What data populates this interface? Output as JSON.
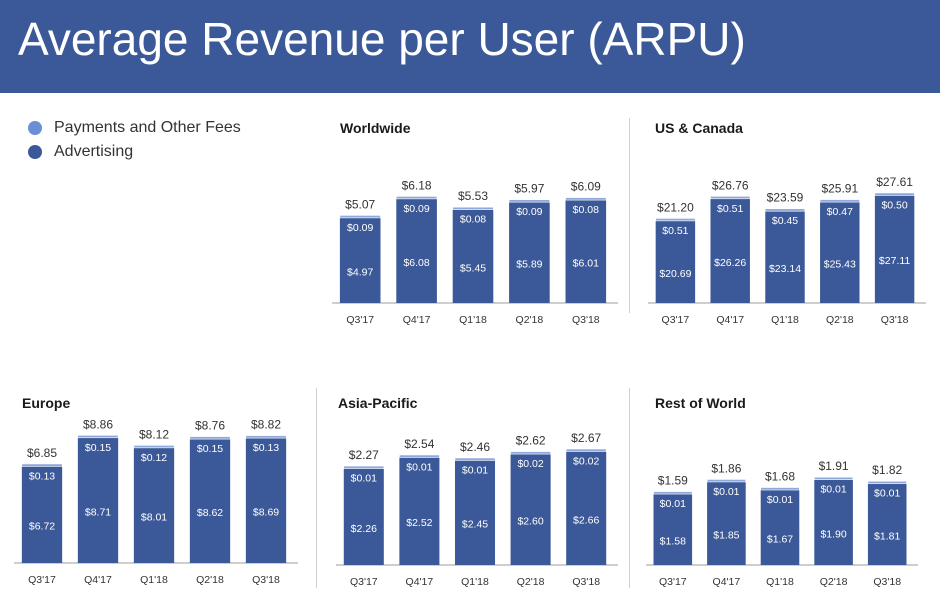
{
  "header": {
    "title": "Average Revenue per User (ARPU)"
  },
  "legend": {
    "items": [
      {
        "label": "Payments and Other Fees",
        "color": "#6a8fd6"
      },
      {
        "label": "Advertising",
        "color": "#3b5998"
      }
    ]
  },
  "colors": {
    "advertising": "#3b5998",
    "payments": "#8fa9dc",
    "header": "#3b5998",
    "axis": "#9e9e9e"
  },
  "chart_data": [
    {
      "type": "bar",
      "stacked": true,
      "title": "Worldwide",
      "categories": [
        "Q3'17",
        "Q4'17",
        "Q1'18",
        "Q2'18",
        "Q3'18"
      ],
      "series": [
        {
          "name": "Advertising",
          "values": [
            4.97,
            6.08,
            5.45,
            5.89,
            6.01
          ],
          "labels": [
            "$4.97",
            "$6.08",
            "$5.45",
            "$5.89",
            "$6.01"
          ]
        },
        {
          "name": "Payments and Other Fees",
          "values": [
            0.09,
            0.09,
            0.08,
            0.09,
            0.08
          ],
          "labels": [
            "$0.09",
            "$0.09",
            "$0.08",
            "$0.09",
            "$0.08"
          ]
        }
      ],
      "totals": [
        "$5.07",
        "$6.18",
        "$5.53",
        "$5.97",
        "$6.09"
      ],
      "total_values": [
        5.07,
        6.18,
        5.53,
        5.97,
        6.09
      ],
      "ylim": [
        0,
        7.3
      ]
    },
    {
      "type": "bar",
      "stacked": true,
      "title": "US & Canada",
      "categories": [
        "Q3'17",
        "Q4'17",
        "Q1'18",
        "Q2'18",
        "Q3'18"
      ],
      "series": [
        {
          "name": "Advertising",
          "values": [
            20.69,
            26.26,
            23.14,
            25.43,
            27.11
          ],
          "labels": [
            "$20.69",
            "$26.26",
            "$23.14",
            "$25.43",
            "$27.11"
          ]
        },
        {
          "name": "Payments and Other Fees",
          "values": [
            0.51,
            0.51,
            0.45,
            0.47,
            0.5
          ],
          "labels": [
            "$0.51",
            "$0.51",
            "$0.45",
            "$0.47",
            "$0.50"
          ]
        }
      ],
      "totals": [
        "$21.20",
        "$26.76",
        "$23.59",
        "$25.91",
        "$27.61"
      ],
      "total_values": [
        21.2,
        26.76,
        23.59,
        25.91,
        27.61
      ],
      "ylim": [
        0,
        31.5
      ]
    },
    {
      "type": "bar",
      "stacked": true,
      "title": "Europe",
      "categories": [
        "Q3'17",
        "Q4'17",
        "Q1'18",
        "Q2'18",
        "Q3'18"
      ],
      "series": [
        {
          "name": "Advertising",
          "values": [
            6.72,
            8.71,
            8.01,
            8.62,
            8.69
          ],
          "labels": [
            "$6.72",
            "$8.71",
            "$8.01",
            "$8.62",
            "$8.69"
          ]
        },
        {
          "name": "Payments and Other Fees",
          "values": [
            0.13,
            0.15,
            0.12,
            0.15,
            0.13
          ],
          "labels": [
            "$0.13",
            "$0.15",
            "$0.12",
            "$0.15",
            "$0.13"
          ]
        }
      ],
      "totals": [
        "$6.85",
        "$8.86",
        "$8.12",
        "$8.76",
        "$8.82"
      ],
      "total_values": [
        6.85,
        8.86,
        8.12,
        8.76,
        8.82
      ],
      "ylim": [
        0,
        9.6
      ]
    },
    {
      "type": "bar",
      "stacked": true,
      "title": "Asia-Pacific",
      "categories": [
        "Q3'17",
        "Q4'17",
        "Q1'18",
        "Q2'18",
        "Q3'18"
      ],
      "series": [
        {
          "name": "Advertising",
          "values": [
            2.26,
            2.52,
            2.45,
            2.6,
            2.66
          ],
          "labels": [
            "$2.26",
            "$2.52",
            "$2.45",
            "$2.60",
            "$2.66"
          ]
        },
        {
          "name": "Payments and Other Fees",
          "values": [
            0.01,
            0.01,
            0.01,
            0.02,
            0.02
          ],
          "labels": [
            "$0.01",
            "$0.01",
            "$0.01",
            "$0.02",
            "$0.02"
          ]
        }
      ],
      "totals": [
        "$2.27",
        "$2.54",
        "$2.46",
        "$2.62",
        "$2.67"
      ],
      "total_values": [
        2.27,
        2.54,
        2.46,
        2.62,
        2.67
      ],
      "ylim": [
        0,
        3.0
      ]
    },
    {
      "type": "bar",
      "stacked": true,
      "title": "Rest of World",
      "categories": [
        "Q3'17",
        "Q4'17",
        "Q1'18",
        "Q2'18",
        "Q3'18"
      ],
      "series": [
        {
          "name": "Advertising",
          "values": [
            1.58,
            1.85,
            1.67,
            1.9,
            1.81
          ],
          "labels": [
            "$1.58",
            "$1.85",
            "$1.67",
            "$1.90",
            "$1.81"
          ]
        },
        {
          "name": "Payments and Other Fees",
          "values": [
            0.01,
            0.01,
            0.01,
            0.01,
            0.01
          ],
          "labels": [
            "$0.01",
            "$0.01",
            "$0.01",
            "$0.01",
            "$0.01"
          ]
        }
      ],
      "totals": [
        "$1.59",
        "$1.86",
        "$1.68",
        "$1.91",
        "$1.82"
      ],
      "total_values": [
        1.59,
        1.86,
        1.68,
        1.91,
        1.82
      ],
      "ylim": [
        0,
        2.45
      ]
    }
  ]
}
